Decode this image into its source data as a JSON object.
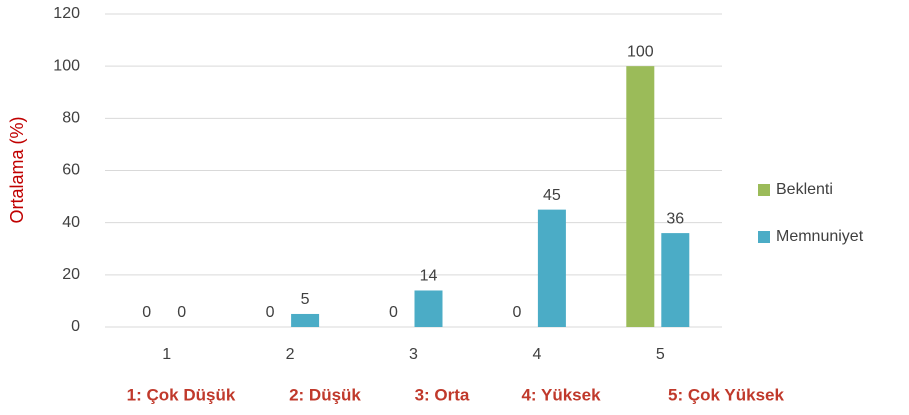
{
  "chart_data": {
    "type": "bar",
    "ylabel": "Ortalama (%)",
    "categories": [
      "1",
      "2",
      "3",
      "4",
      "5"
    ],
    "series": [
      {
        "name": "Beklenti",
        "color": "#9bbb59",
        "values": [
          0,
          0,
          0,
          0,
          100
        ]
      },
      {
        "name": "Memnuniyet",
        "color": "#4bacc6",
        "values": [
          0,
          5,
          14,
          45,
          36
        ]
      }
    ],
    "ylim": [
      0,
      120
    ],
    "yticks": [
      0,
      20,
      40,
      60,
      80,
      100,
      120
    ],
    "grid": true,
    "legend": "right",
    "annotations": [
      "1: Çok Düşük",
      "2: Düşük",
      "3: Orta",
      "4: Yüksek",
      "5: Çok Yüksek"
    ]
  }
}
